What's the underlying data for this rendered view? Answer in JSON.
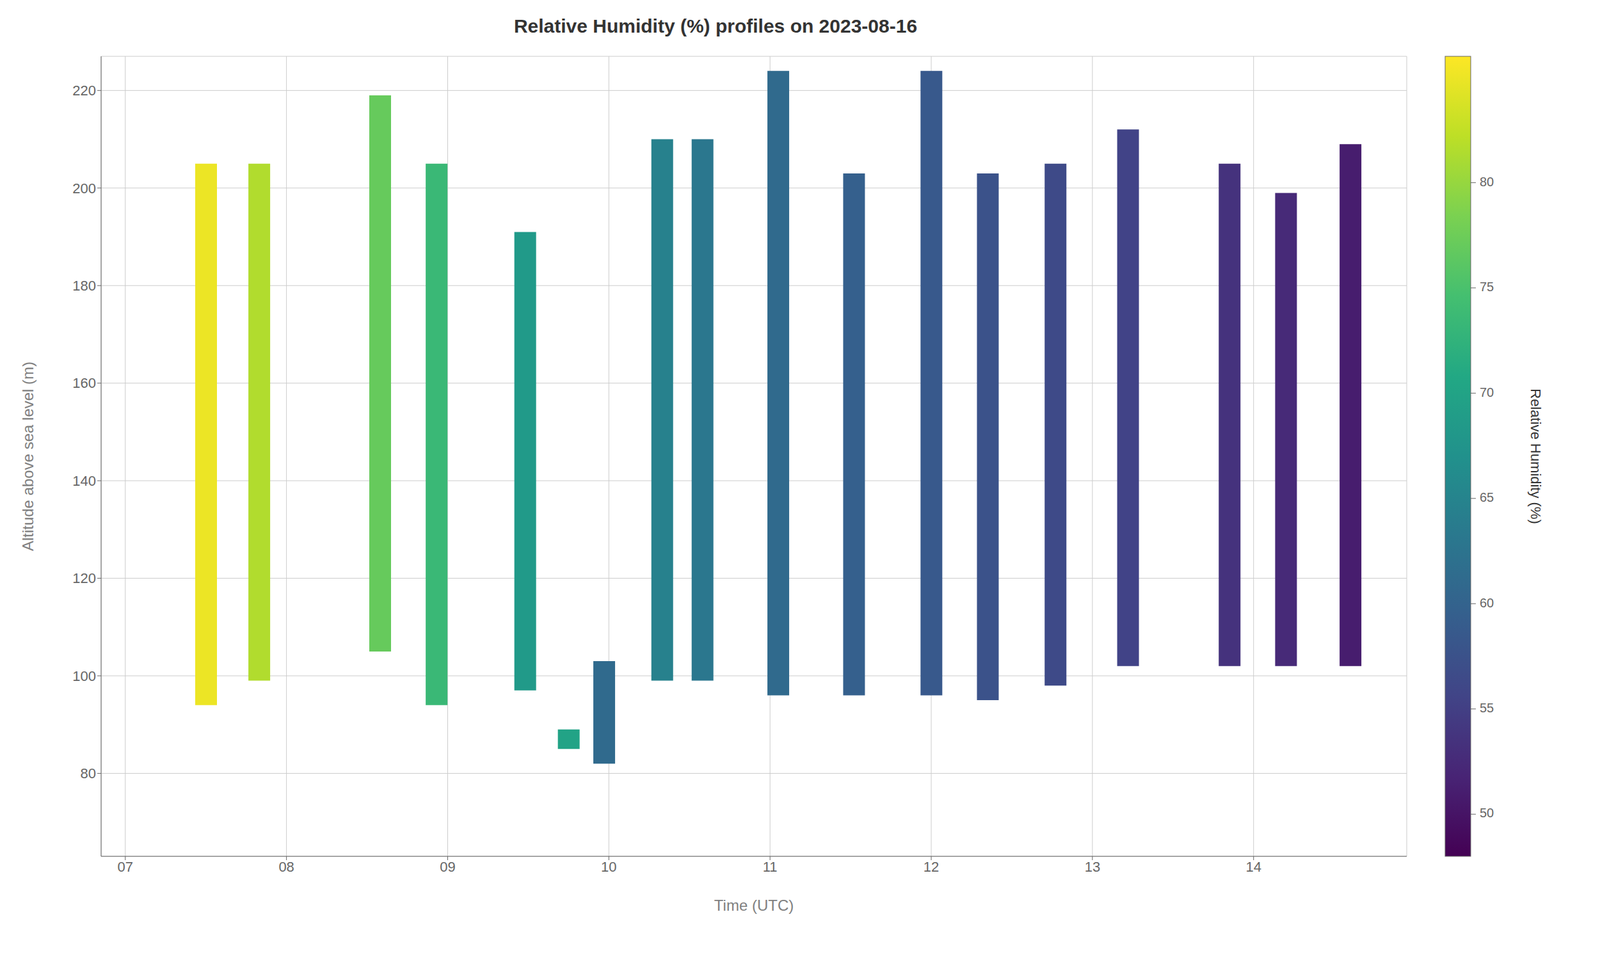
{
  "chart_data": {
    "type": "range_bar",
    "title": "Relative Humidity (%) profiles on 2023-08-16",
    "x_label": "Time (UTC)",
    "y_label": "Altitude above sea level (m)",
    "x": [
      7.5,
      7.83,
      8.58,
      8.93,
      9.48,
      9.75,
      9.97,
      10.33,
      10.58,
      11.05,
      11.52,
      12.0,
      12.35,
      12.77,
      13.22,
      13.85,
      14.2,
      14.6
    ],
    "bottom": [
      94,
      99,
      105,
      94,
      97,
      85,
      82,
      99,
      99,
      96,
      96,
      96,
      95,
      98,
      102,
      102,
      102,
      102
    ],
    "top": [
      205,
      205,
      219,
      205,
      191,
      89,
      103,
      210,
      210,
      224,
      203,
      224,
      203,
      205,
      212,
      205,
      199,
      209
    ],
    "color_values": [
      85.0,
      81.5,
      77.0,
      73.5,
      68.5,
      70.0,
      61.0,
      64.5,
      63.0,
      61.0,
      59.5,
      58.5,
      57.5,
      56.5,
      55.5,
      53.5,
      52.5,
      51.0
    ],
    "colorbar": {
      "label": "Relative Humidity (%)",
      "range": [
        48,
        86
      ],
      "ticks": [
        50,
        55,
        60,
        65,
        70,
        75,
        80
      ]
    },
    "xlim": [
      6.85,
      14.95
    ],
    "xticks": [
      {
        "value": 7,
        "label": "07"
      },
      {
        "value": 8,
        "label": "08"
      },
      {
        "value": 9,
        "label": "09"
      },
      10,
      11,
      12,
      13,
      14
    ],
    "ylim": [
      63,
      227
    ],
    "yticks": [
      80,
      100,
      120,
      140,
      160,
      180,
      200,
      220
    ],
    "grid": true
  }
}
